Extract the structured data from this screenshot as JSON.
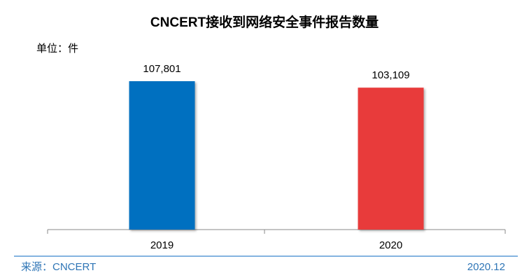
{
  "chart_data": {
    "type": "bar",
    "title": "CNCERT接收到网络安全事件报告数量",
    "unit": "单位：件",
    "categories": [
      "2019",
      "2020"
    ],
    "values": [
      107801,
      103109
    ],
    "value_labels": [
      "107,801",
      "103,109"
    ],
    "colors": [
      "#0070c0",
      "#e83b3b"
    ],
    "source": "来源：CNCERT",
    "date": "2020.12"
  }
}
